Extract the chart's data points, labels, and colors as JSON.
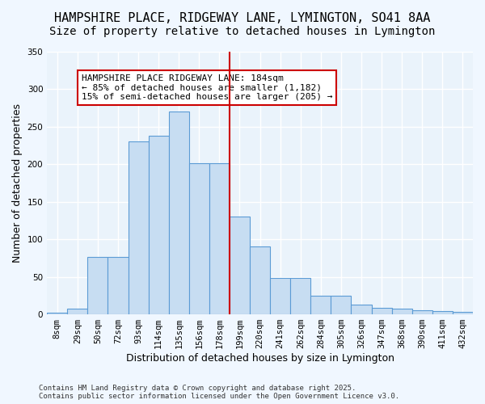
{
  "title_line1": "HAMPSHIRE PLACE, RIDGEWAY LANE, LYMINGTON, SO41 8AA",
  "title_line2": "Size of property relative to detached houses in Lymington",
  "xlabel": "Distribution of detached houses by size in Lymington",
  "ylabel": "Number of detached properties",
  "categories": [
    "8sqm",
    "29sqm",
    "50sqm",
    "72sqm",
    "93sqm",
    "114sqm",
    "135sqm",
    "156sqm",
    "178sqm",
    "199sqm",
    "220sqm",
    "241sqm",
    "262sqm",
    "284sqm",
    "305sqm",
    "326sqm",
    "347sqm",
    "368sqm",
    "390sqm",
    "411sqm",
    "432sqm"
  ],
  "values": [
    2,
    8,
    77,
    77,
    230,
    238,
    270,
    201,
    201,
    130,
    90,
    49,
    49,
    25,
    25,
    13,
    9,
    8,
    5,
    4,
    3
  ],
  "bar_color": "#c7ddf2",
  "bar_edge_color": "#5b9bd5",
  "reference_line_x": 8,
  "reference_value": 184,
  "annotation_line1": "HAMPSHIRE PLACE RIDGEWAY LANE: 184sqm",
  "annotation_line2": "← 85% of detached houses are smaller (1,182)",
  "annotation_line3": "15% of semi-detached houses are larger (205) →",
  "annotation_box_color": "#ffffff",
  "annotation_box_edge": "#cc0000",
  "vline_color": "#cc0000",
  "ylim": [
    0,
    350
  ],
  "yticks": [
    0,
    50,
    100,
    150,
    200,
    250,
    300,
    350
  ],
  "background_color": "#eaf3fb",
  "grid_color": "#ffffff",
  "footer": "Contains HM Land Registry data © Crown copyright and database right 2025.\nContains public sector information licensed under the Open Government Licence v3.0.",
  "title_fontsize": 11,
  "subtitle_fontsize": 10,
  "axis_label_fontsize": 9,
  "tick_fontsize": 7.5,
  "annotation_fontsize": 8
}
